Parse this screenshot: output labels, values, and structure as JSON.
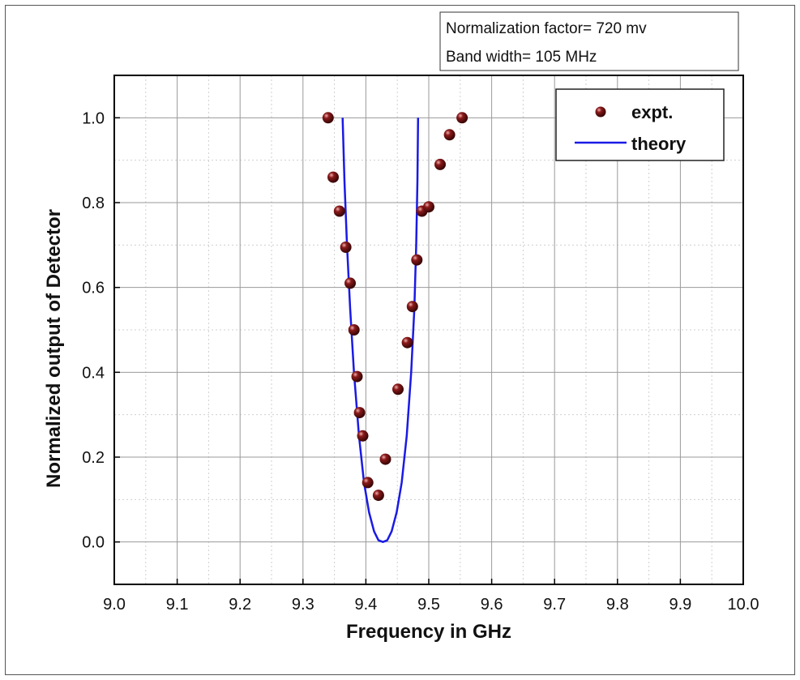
{
  "chart_data": {
    "type": "scatter",
    "xlabel": "Frequency in GHz",
    "ylabel": "Normalized output of Detector",
    "xlim": [
      9.0,
      10.0
    ],
    "ylim": [
      -0.1,
      1.1
    ],
    "xticks": [
      "9.0",
      "9.1",
      "9.2",
      "9.3",
      "9.4",
      "9.5",
      "9.6",
      "9.7",
      "9.8",
      "9.9",
      "10.0"
    ],
    "yticks": [
      "0.0",
      "0.2",
      "0.4",
      "0.6",
      "0.8",
      "1.0"
    ],
    "grid": true,
    "legend_position": "top-right",
    "annotations": [
      "Normalization factor= 720 mv",
      "Band width= 105 MHz"
    ],
    "series": [
      {
        "name": "expt.",
        "kind": "scatter",
        "color": "#8b1a1a",
        "points": [
          [
            9.34,
            1.0
          ],
          [
            9.348,
            0.86
          ],
          [
            9.358,
            0.78
          ],
          [
            9.368,
            0.695
          ],
          [
            9.375,
            0.61
          ],
          [
            9.381,
            0.5
          ],
          [
            9.386,
            0.39
          ],
          [
            9.39,
            0.305
          ],
          [
            9.395,
            0.25
          ],
          [
            9.403,
            0.14
          ],
          [
            9.42,
            0.11
          ],
          [
            9.431,
            0.195
          ],
          [
            9.451,
            0.36
          ],
          [
            9.466,
            0.47
          ],
          [
            9.474,
            0.555
          ],
          [
            9.481,
            0.665
          ],
          [
            9.489,
            0.78
          ],
          [
            9.5,
            0.79
          ],
          [
            9.518,
            0.89
          ],
          [
            9.533,
            0.96
          ],
          [
            9.553,
            1.0
          ]
        ]
      },
      {
        "name": "theory",
        "kind": "line",
        "color": "#1a1ae6",
        "points": [
          [
            9.363,
            1.0
          ],
          [
            9.366,
            0.85
          ],
          [
            9.37,
            0.7
          ],
          [
            9.375,
            0.55
          ],
          [
            9.381,
            0.4
          ],
          [
            9.389,
            0.25
          ],
          [
            9.397,
            0.14
          ],
          [
            9.405,
            0.07
          ],
          [
            9.413,
            0.025
          ],
          [
            9.42,
            0.004
          ],
          [
            9.427,
            0.0
          ],
          [
            9.434,
            0.004
          ],
          [
            9.441,
            0.025
          ],
          [
            9.449,
            0.07
          ],
          [
            9.457,
            0.14
          ],
          [
            9.465,
            0.25
          ],
          [
            9.472,
            0.4
          ],
          [
            9.477,
            0.55
          ],
          [
            9.48,
            0.7
          ],
          [
            9.482,
            0.85
          ],
          [
            9.483,
            1.0
          ]
        ]
      }
    ]
  }
}
